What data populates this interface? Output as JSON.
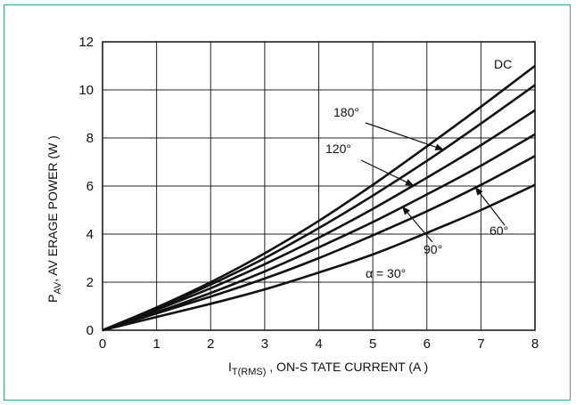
{
  "chart_data": {
    "type": "line",
    "xlabel": {
      "main": "I",
      "sub": "T(RMS)",
      "rest": " , ON-S  TATE CURRENT (A      )"
    },
    "ylabel": {
      "main": "P",
      "sub": "AV",
      "rest": ", AV ERAGE POWER (W      )"
    },
    "xlim": [
      0,
      8
    ],
    "ylim": [
      0,
      12
    ],
    "x_ticks": [
      "0",
      "1",
      "2",
      "3",
      "4",
      "5",
      "6",
      "7",
      "8"
    ],
    "y_ticks": [
      "0",
      "2",
      "4",
      "6",
      "8",
      "10",
      "12"
    ],
    "grid": true,
    "series": [
      {
        "name": "DC",
        "x": [
          0,
          1,
          2,
          3,
          4,
          5,
          6,
          7,
          8
        ],
        "y": [
          0,
          0.95,
          2.0,
          3.2,
          4.55,
          6.05,
          7.65,
          9.3,
          11.0
        ]
      },
      {
        "name": "180°",
        "x": [
          0,
          1,
          2,
          3,
          4,
          5,
          6,
          7,
          8
        ],
        "y": [
          0,
          0.9,
          1.9,
          3.0,
          4.25,
          5.6,
          7.05,
          8.6,
          10.2
        ]
      },
      {
        "name": "120°",
        "x": [
          0,
          1,
          2,
          3,
          4,
          5,
          6,
          7,
          8
        ],
        "y": [
          0,
          0.85,
          1.75,
          2.75,
          3.85,
          5.05,
          6.35,
          7.7,
          9.15
        ]
      },
      {
        "name": "90°",
        "x": [
          0,
          1,
          2,
          3,
          4,
          5,
          6,
          7,
          8
        ],
        "y": [
          0,
          0.75,
          1.55,
          2.45,
          3.45,
          4.5,
          5.65,
          6.85,
          8.15
        ]
      },
      {
        "name": "60°",
        "x": [
          0,
          1,
          2,
          3,
          4,
          5,
          6,
          7,
          8
        ],
        "y": [
          0,
          0.7,
          1.4,
          2.15,
          3.0,
          3.95,
          4.95,
          6.05,
          7.25
        ]
      },
      {
        "name": "α = 30°",
        "x": [
          0,
          1,
          2,
          3,
          4,
          5,
          6,
          7,
          8
        ],
        "y": [
          0,
          0.55,
          1.1,
          1.7,
          2.4,
          3.15,
          4.05,
          5.0,
          6.05
        ]
      }
    ],
    "annotations": [
      {
        "text": "DC",
        "series": "DC",
        "arrow": false
      },
      {
        "text": "180°",
        "series": "180°",
        "arrow": true
      },
      {
        "text": "120°",
        "series": "120°",
        "arrow": true
      },
      {
        "text": "90°",
        "series": "90°",
        "arrow": true
      },
      {
        "text": "60°",
        "series": "60°",
        "arrow": true
      },
      {
        "text": "α = 30°",
        "series": "α = 30°",
        "arrow": false
      }
    ]
  }
}
